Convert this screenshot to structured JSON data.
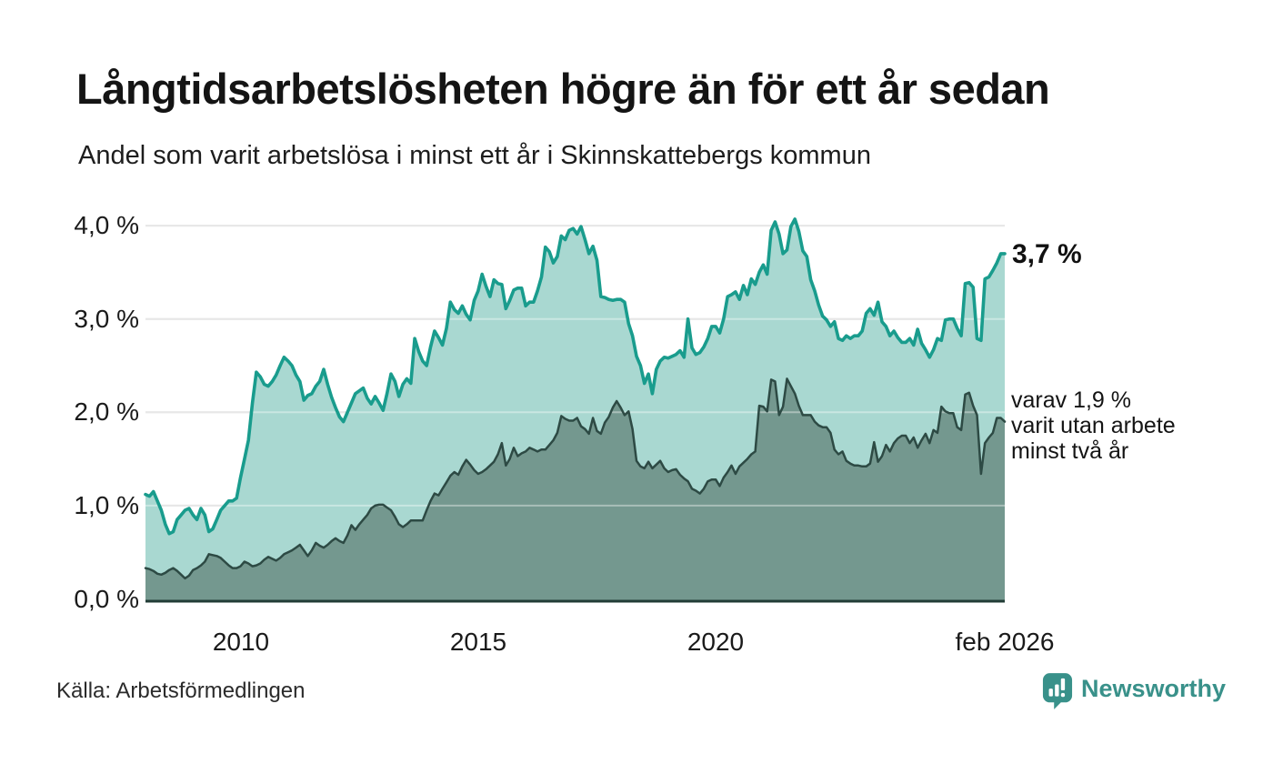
{
  "header": {
    "title": "Långtidsarbetslösheten högre än för ett år sedan",
    "subtitle": "Andel som varit arbetslösa i minst ett år i Skinnskattebergs kommun"
  },
  "chart_data": {
    "type": "area",
    "title": "Långtidsarbetslösheten högre än för ett år sedan",
    "subtitle": "Andel som varit arbetslösa i minst ett år i Skinnskattebergs kommun",
    "x_unit": "month",
    "x_start_year": 2008,
    "x_end_year": 2026.0833,
    "x_ticks": [
      {
        "label": "2010",
        "year": 2010
      },
      {
        "label": "2015",
        "year": 2015
      },
      {
        "label": "2020",
        "year": 2020
      },
      {
        "label": "feb 2026",
        "year": 2026.0833
      }
    ],
    "y_ticks": [
      {
        "label": "4,0 %",
        "value": 4.0
      },
      {
        "label": "3,0 %",
        "value": 3.0
      },
      {
        "label": "2,0 %",
        "value": 2.0
      },
      {
        "label": "1,0 %",
        "value": 1.0
      },
      {
        "label": "0,0 %",
        "value": 0.0
      }
    ],
    "ylim": [
      0,
      4.3
    ],
    "grid": true,
    "colors": {
      "line_1yr": "#199c8d",
      "fill_1yr": "#a9d8d1",
      "line_2yr": "#2d4a44",
      "fill_2yr": "#74988f",
      "gridline": "#d8d8d8",
      "gridline_overlay": "rgba(255,255,255,0.38)",
      "baseline": "#223c36"
    },
    "series": [
      {
        "name": "arbetslösa i minst ett år",
        "latest_value": 3.7,
        "values": [
          1.12,
          1.1,
          1.15,
          1.05,
          0.95,
          0.8,
          0.7,
          0.72,
          0.85,
          0.9,
          0.95,
          0.97,
          0.9,
          0.85,
          0.97,
          0.9,
          0.72,
          0.75,
          0.85,
          0.95,
          1.0,
          1.05,
          1.05,
          1.08,
          1.3,
          1.5,
          1.7,
          2.1,
          2.43,
          2.38,
          2.3,
          2.28,
          2.33,
          2.4,
          2.5,
          2.59,
          2.55,
          2.5,
          2.4,
          2.33,
          2.13,
          2.18,
          2.2,
          2.28,
          2.33,
          2.46,
          2.3,
          2.16,
          2.05,
          1.95,
          1.9,
          2.0,
          2.1,
          2.2,
          2.23,
          2.26,
          2.15,
          2.09,
          2.17,
          2.1,
          2.02,
          2.2,
          2.41,
          2.33,
          2.17,
          2.3,
          2.36,
          2.31,
          2.79,
          2.65,
          2.55,
          2.5,
          2.7,
          2.87,
          2.8,
          2.72,
          2.9,
          3.18,
          3.1,
          3.06,
          3.14,
          3.05,
          2.99,
          3.2,
          3.3,
          3.48,
          3.35,
          3.24,
          3.42,
          3.38,
          3.37,
          3.11,
          3.2,
          3.31,
          3.33,
          3.33,
          3.14,
          3.18,
          3.18,
          3.3,
          3.45,
          3.77,
          3.72,
          3.6,
          3.67,
          3.89,
          3.85,
          3.95,
          3.97,
          3.91,
          3.99,
          3.85,
          3.7,
          3.78,
          3.63,
          3.24,
          3.23,
          3.21,
          3.2,
          3.21,
          3.21,
          3.18,
          2.95,
          2.82,
          2.6,
          2.5,
          2.31,
          2.41,
          2.2,
          2.46,
          2.55,
          2.59,
          2.58,
          2.6,
          2.62,
          2.66,
          2.59,
          3.0,
          2.69,
          2.62,
          2.64,
          2.7,
          2.79,
          2.92,
          2.92,
          2.85,
          3.0,
          3.24,
          3.26,
          3.29,
          3.21,
          3.36,
          3.26,
          3.43,
          3.37,
          3.5,
          3.58,
          3.48,
          3.95,
          4.04,
          3.91,
          3.7,
          3.74,
          3.99,
          4.07,
          3.94,
          3.73,
          3.67,
          3.42,
          3.3,
          3.15,
          3.03,
          2.99,
          2.92,
          2.97,
          2.79,
          2.77,
          2.82,
          2.79,
          2.82,
          2.82,
          2.87,
          3.06,
          3.11,
          3.04,
          3.18,
          2.97,
          2.92,
          2.82,
          2.87,
          2.8,
          2.75,
          2.75,
          2.79,
          2.72,
          2.89,
          2.74,
          2.67,
          2.59,
          2.67,
          2.79,
          2.77,
          2.99,
          3.0,
          3.0,
          2.9,
          2.82,
          3.38,
          3.39,
          3.34,
          2.79,
          2.77,
          3.43,
          3.45,
          3.52,
          3.6,
          3.7,
          3.7
        ]
      },
      {
        "name": "varit utan arbete minst två år",
        "latest_value": 1.9,
        "values": [
          0.33,
          0.32,
          0.3,
          0.27,
          0.26,
          0.28,
          0.31,
          0.33,
          0.3,
          0.26,
          0.22,
          0.25,
          0.31,
          0.33,
          0.36,
          0.4,
          0.48,
          0.47,
          0.46,
          0.44,
          0.4,
          0.36,
          0.33,
          0.33,
          0.35,
          0.4,
          0.38,
          0.35,
          0.36,
          0.38,
          0.42,
          0.45,
          0.43,
          0.41,
          0.44,
          0.48,
          0.5,
          0.52,
          0.55,
          0.58,
          0.52,
          0.46,
          0.52,
          0.6,
          0.57,
          0.55,
          0.58,
          0.62,
          0.65,
          0.62,
          0.6,
          0.68,
          0.79,
          0.74,
          0.8,
          0.85,
          0.9,
          0.97,
          1.0,
          1.01,
          1.01,
          0.98,
          0.95,
          0.88,
          0.8,
          0.77,
          0.8,
          0.84,
          0.84,
          0.84,
          0.84,
          0.95,
          1.05,
          1.13,
          1.11,
          1.18,
          1.25,
          1.32,
          1.36,
          1.33,
          1.42,
          1.49,
          1.44,
          1.38,
          1.34,
          1.36,
          1.39,
          1.43,
          1.47,
          1.55,
          1.67,
          1.43,
          1.5,
          1.62,
          1.53,
          1.56,
          1.58,
          1.62,
          1.6,
          1.58,
          1.6,
          1.6,
          1.65,
          1.7,
          1.78,
          1.96,
          1.93,
          1.91,
          1.91,
          1.94,
          1.85,
          1.82,
          1.77,
          1.94,
          1.8,
          1.77,
          1.89,
          1.95,
          2.05,
          2.12,
          2.05,
          1.97,
          2.01,
          1.82,
          1.48,
          1.42,
          1.4,
          1.47,
          1.4,
          1.44,
          1.48,
          1.4,
          1.36,
          1.38,
          1.39,
          1.33,
          1.29,
          1.26,
          1.18,
          1.16,
          1.13,
          1.18,
          1.26,
          1.28,
          1.28,
          1.21,
          1.3,
          1.36,
          1.43,
          1.34,
          1.42,
          1.46,
          1.5,
          1.55,
          1.58,
          2.07,
          2.06,
          2.01,
          2.35,
          2.33,
          1.97,
          2.06,
          2.36,
          2.28,
          2.2,
          2.07,
          1.97,
          1.97,
          1.97,
          1.9,
          1.86,
          1.84,
          1.84,
          1.78,
          1.6,
          1.55,
          1.58,
          1.48,
          1.45,
          1.43,
          1.43,
          1.42,
          1.42,
          1.45,
          1.68,
          1.47,
          1.53,
          1.65,
          1.58,
          1.67,
          1.72,
          1.75,
          1.75,
          1.67,
          1.73,
          1.62,
          1.7,
          1.77,
          1.67,
          1.81,
          1.78,
          2.06,
          2.01,
          1.99,
          1.99,
          1.84,
          1.81,
          2.19,
          2.21,
          2.07,
          1.97,
          1.34,
          1.67,
          1.73,
          1.78,
          1.94,
          1.94,
          1.9
        ]
      }
    ],
    "annotations": {
      "latest_label": "3,7 %",
      "secondary_label": "varav 1,9 %\nvarit utan arbete\nminst två år"
    },
    "legend": "none"
  },
  "footer": {
    "source": "Källa: Arbetsförmedlingen",
    "brand": "Newsworthy"
  }
}
